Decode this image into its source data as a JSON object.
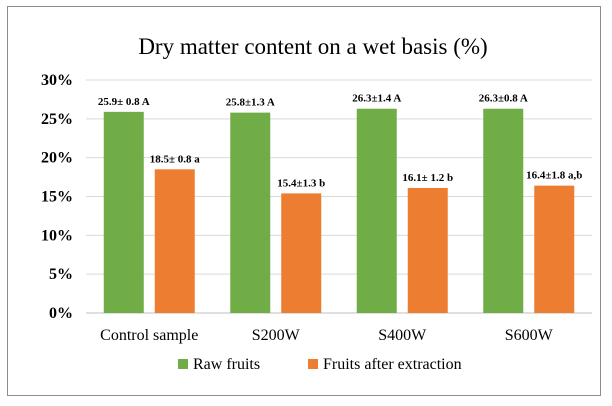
{
  "chart_data": {
    "type": "bar",
    "title": "Dry matter content on a wet basis (%)",
    "xlabel": "",
    "ylabel": "",
    "ylim": [
      0,
      30
    ],
    "yticks": [
      0,
      5,
      10,
      15,
      20,
      25,
      30
    ],
    "ytick_labels": [
      "0%",
      "5%",
      "10%",
      "15%",
      "20%",
      "25%",
      "30%"
    ],
    "grid": true,
    "legend_position": "bottom",
    "categories": [
      "Control sample",
      "S200W",
      "S400W",
      "S600W"
    ],
    "series": [
      {
        "name": "Raw fruits",
        "color": "#70ad47",
        "values": [
          25.9,
          25.8,
          26.3,
          26.3
        ],
        "labels": [
          "25.9± 0.8 A",
          "25.8±1.3 A",
          "26.3±1.4 A",
          "26.3±0.8 A"
        ]
      },
      {
        "name": "Fruits after extraction",
        "color": "#ed7d31",
        "values": [
          18.5,
          15.4,
          16.1,
          16.4
        ],
        "labels": [
          "18.5± 0.8 a",
          "15.4±1.3 b",
          "16.1± 1.2 b",
          "16.4±1.8 a,b"
        ]
      }
    ]
  }
}
